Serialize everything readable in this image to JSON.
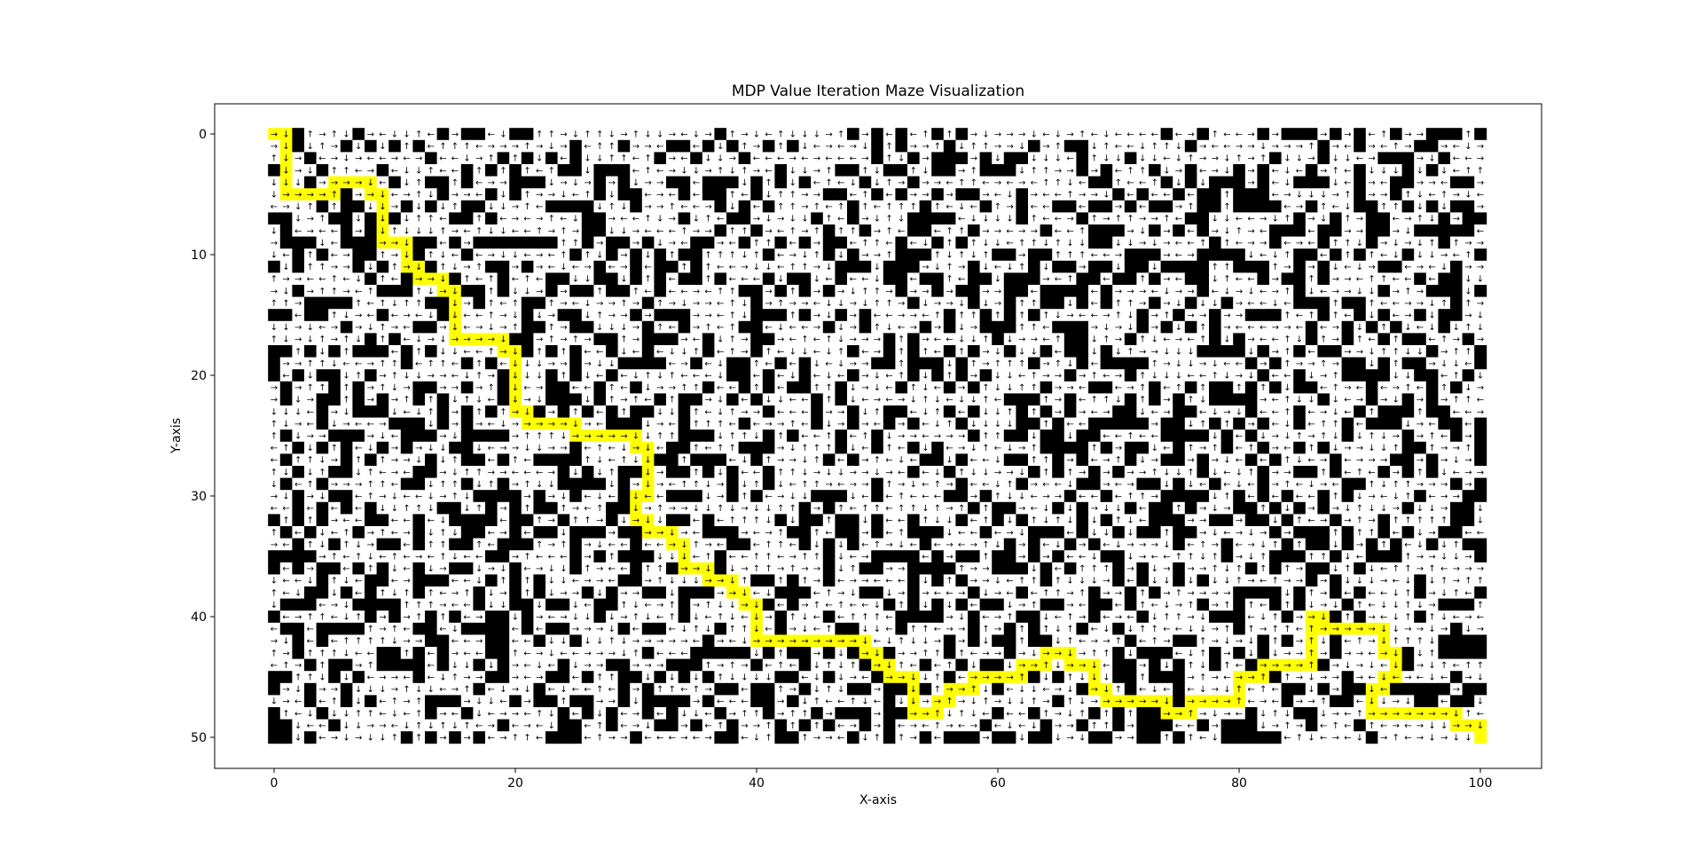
{
  "chart_data": {
    "type": "heatmap",
    "title": "MDP Value Iteration Maze Visualization",
    "xlabel": "X-axis",
    "ylabel": "Y-axis",
    "xlim": [
      -5,
      105
    ],
    "ylim": [
      52.5,
      -2.5
    ],
    "grid": false,
    "cols": 101,
    "rows": 51,
    "x_ticks": [
      0,
      20,
      40,
      60,
      80,
      100
    ],
    "y_ticks": [
      0,
      10,
      20,
      30,
      40,
      50
    ],
    "colors": {
      "wall": "#000000",
      "open": "#ffffff",
      "path": "#ffff00",
      "arrow": "#000000"
    },
    "maze_seed": 12345,
    "wall_fraction": 0.33,
    "arrow_symbols": [
      "→",
      "←",
      "↑",
      "↓"
    ],
    "path": [
      {
        "x": 0,
        "y": 0,
        "a": "→"
      },
      {
        "x": 1,
        "y": 0,
        "a": "↓"
      },
      {
        "x": 1,
        "y": 1,
        "a": "↓"
      },
      {
        "x": 1,
        "y": 2,
        "a": "↓"
      },
      {
        "x": 1,
        "y": 3,
        "a": "↓"
      },
      {
        "x": 1,
        "y": 4,
        "a": "↓"
      },
      {
        "x": 1,
        "y": 5,
        "a": "→"
      },
      {
        "x": 2,
        "y": 5,
        "a": "→"
      },
      {
        "x": 3,
        "y": 5,
        "a": "→"
      },
      {
        "x": 4,
        "y": 5,
        "a": "→"
      },
      {
        "x": 5,
        "y": 5,
        "a": "↑"
      },
      {
        "x": 5,
        "y": 4,
        "a": "→"
      },
      {
        "x": 6,
        "y": 4,
        "a": "→"
      },
      {
        "x": 7,
        "y": 4,
        "a": "→"
      },
      {
        "x": 8,
        "y": 4,
        "a": "↓"
      },
      {
        "x": 8,
        "y": 5,
        "a": "→"
      },
      {
        "x": 9,
        "y": 5,
        "a": "↓"
      },
      {
        "x": 9,
        "y": 6,
        "a": "↓"
      },
      {
        "x": 9,
        "y": 7,
        "a": "↓"
      },
      {
        "x": 9,
        "y": 8,
        "a": "↓"
      },
      {
        "x": 9,
        "y": 9,
        "a": "→"
      },
      {
        "x": 10,
        "y": 9,
        "a": "→"
      },
      {
        "x": 11,
        "y": 9,
        "a": "↓"
      },
      {
        "x": 11,
        "y": 10,
        "a": "↓"
      },
      {
        "x": 11,
        "y": 11,
        "a": "→"
      },
      {
        "x": 12,
        "y": 11,
        "a": "↓"
      },
      {
        "x": 12,
        "y": 12,
        "a": "→"
      },
      {
        "x": 13,
        "y": 12,
        "a": "→"
      },
      {
        "x": 14,
        "y": 12,
        "a": "↓"
      },
      {
        "x": 14,
        "y": 13,
        "a": "→"
      },
      {
        "x": 15,
        "y": 13,
        "a": "↓"
      },
      {
        "x": 15,
        "y": 14,
        "a": "↓"
      },
      {
        "x": 15,
        "y": 15,
        "a": "↓"
      },
      {
        "x": 15,
        "y": 16,
        "a": "↓"
      },
      {
        "x": 15,
        "y": 17,
        "a": "→"
      },
      {
        "x": 16,
        "y": 17,
        "a": "→"
      },
      {
        "x": 17,
        "y": 17,
        "a": "→"
      },
      {
        "x": 18,
        "y": 17,
        "a": "→"
      },
      {
        "x": 19,
        "y": 17,
        "a": "↓"
      },
      {
        "x": 19,
        "y": 18,
        "a": "→"
      },
      {
        "x": 20,
        "y": 18,
        "a": "↓"
      },
      {
        "x": 20,
        "y": 19,
        "a": "↓"
      },
      {
        "x": 20,
        "y": 20,
        "a": "↓"
      },
      {
        "x": 20,
        "y": 21,
        "a": "↓"
      },
      {
        "x": 20,
        "y": 22,
        "a": "↓"
      },
      {
        "x": 20,
        "y": 23,
        "a": "→"
      },
      {
        "x": 21,
        "y": 23,
        "a": "↓"
      },
      {
        "x": 21,
        "y": 24,
        "a": "→"
      },
      {
        "x": 22,
        "y": 24,
        "a": "→"
      },
      {
        "x": 23,
        "y": 24,
        "a": "→"
      },
      {
        "x": 24,
        "y": 24,
        "a": "→"
      },
      {
        "x": 25,
        "y": 24,
        "a": "↓"
      },
      {
        "x": 25,
        "y": 25,
        "a": "→"
      },
      {
        "x": 26,
        "y": 25,
        "a": "→"
      },
      {
        "x": 27,
        "y": 25,
        "a": "→"
      },
      {
        "x": 28,
        "y": 25,
        "a": "→"
      },
      {
        "x": 29,
        "y": 25,
        "a": "→"
      },
      {
        "x": 30,
        "y": 25,
        "a": "↓"
      },
      {
        "x": 30,
        "y": 26,
        "a": "→"
      },
      {
        "x": 31,
        "y": 26,
        "a": "↓"
      },
      {
        "x": 31,
        "y": 27,
        "a": "↓"
      },
      {
        "x": 31,
        "y": 28,
        "a": "↓"
      },
      {
        "x": 31,
        "y": 29,
        "a": "↓"
      },
      {
        "x": 31,
        "y": 30,
        "a": "←"
      },
      {
        "x": 30,
        "y": 30,
        "a": "↓"
      },
      {
        "x": 30,
        "y": 31,
        "a": "↓"
      },
      {
        "x": 30,
        "y": 32,
        "a": "→"
      },
      {
        "x": 31,
        "y": 32,
        "a": "↓"
      },
      {
        "x": 31,
        "y": 33,
        "a": "→"
      },
      {
        "x": 32,
        "y": 33,
        "a": "→"
      },
      {
        "x": 33,
        "y": 33,
        "a": "↓"
      },
      {
        "x": 33,
        "y": 34,
        "a": "→"
      },
      {
        "x": 34,
        "y": 34,
        "a": "↓"
      },
      {
        "x": 34,
        "y": 35,
        "a": "↓"
      },
      {
        "x": 34,
        "y": 36,
        "a": "→"
      },
      {
        "x": 35,
        "y": 36,
        "a": "→"
      },
      {
        "x": 36,
        "y": 36,
        "a": "↓"
      },
      {
        "x": 36,
        "y": 37,
        "a": "→"
      },
      {
        "x": 37,
        "y": 37,
        "a": "→"
      },
      {
        "x": 38,
        "y": 37,
        "a": "↓"
      },
      {
        "x": 38,
        "y": 38,
        "a": "→"
      },
      {
        "x": 39,
        "y": 38,
        "a": "↓"
      },
      {
        "x": 39,
        "y": 39,
        "a": "→"
      },
      {
        "x": 40,
        "y": 39,
        "a": "↓"
      },
      {
        "x": 40,
        "y": 40,
        "a": "↓"
      },
      {
        "x": 40,
        "y": 41,
        "a": "↓"
      },
      {
        "x": 40,
        "y": 42,
        "a": "→"
      },
      {
        "x": 41,
        "y": 42,
        "a": "→"
      },
      {
        "x": 42,
        "y": 42,
        "a": "→"
      },
      {
        "x": 43,
        "y": 42,
        "a": "→"
      },
      {
        "x": 44,
        "y": 42,
        "a": "→"
      },
      {
        "x": 45,
        "y": 42,
        "a": "→"
      },
      {
        "x": 46,
        "y": 42,
        "a": "→"
      },
      {
        "x": 47,
        "y": 42,
        "a": "→"
      },
      {
        "x": 48,
        "y": 42,
        "a": "→"
      },
      {
        "x": 49,
        "y": 42,
        "a": "↓"
      },
      {
        "x": 49,
        "y": 43,
        "a": "→"
      },
      {
        "x": 50,
        "y": 43,
        "a": "↓"
      },
      {
        "x": 50,
        "y": 44,
        "a": "→"
      },
      {
        "x": 51,
        "y": 44,
        "a": "↓"
      },
      {
        "x": 51,
        "y": 45,
        "a": "→"
      },
      {
        "x": 52,
        "y": 45,
        "a": "→"
      },
      {
        "x": 53,
        "y": 45,
        "a": "↓"
      },
      {
        "x": 53,
        "y": 46,
        "a": "↓"
      },
      {
        "x": 53,
        "y": 47,
        "a": "↓"
      },
      {
        "x": 53,
        "y": 48,
        "a": "→"
      },
      {
        "x": 54,
        "y": 48,
        "a": "→"
      },
      {
        "x": 55,
        "y": 48,
        "a": "↑"
      },
      {
        "x": 55,
        "y": 47,
        "a": "→"
      },
      {
        "x": 56,
        "y": 47,
        "a": "↑"
      },
      {
        "x": 56,
        "y": 46,
        "a": "→"
      },
      {
        "x": 57,
        "y": 46,
        "a": "→"
      },
      {
        "x": 58,
        "y": 46,
        "a": "↑"
      },
      {
        "x": 58,
        "y": 45,
        "a": "→"
      },
      {
        "x": 59,
        "y": 45,
        "a": "→"
      },
      {
        "x": 60,
        "y": 45,
        "a": "→"
      },
      {
        "x": 61,
        "y": 45,
        "a": "→"
      },
      {
        "x": 62,
        "y": 45,
        "a": "↑"
      },
      {
        "x": 62,
        "y": 44,
        "a": "→"
      },
      {
        "x": 63,
        "y": 44,
        "a": "→"
      },
      {
        "x": 64,
        "y": 44,
        "a": "↑"
      },
      {
        "x": 64,
        "y": 43,
        "a": "→"
      },
      {
        "x": 65,
        "y": 43,
        "a": "→"
      },
      {
        "x": 66,
        "y": 43,
        "a": "↓"
      },
      {
        "x": 66,
        "y": 44,
        "a": "→"
      },
      {
        "x": 67,
        "y": 44,
        "a": "→"
      },
      {
        "x": 68,
        "y": 44,
        "a": "↓"
      },
      {
        "x": 68,
        "y": 45,
        "a": "↓"
      },
      {
        "x": 68,
        "y": 46,
        "a": "→"
      },
      {
        "x": 69,
        "y": 46,
        "a": "↓"
      },
      {
        "x": 69,
        "y": 47,
        "a": "→"
      },
      {
        "x": 70,
        "y": 47,
        "a": "→"
      },
      {
        "x": 71,
        "y": 47,
        "a": "→"
      },
      {
        "x": 72,
        "y": 47,
        "a": "→"
      },
      {
        "x": 73,
        "y": 47,
        "a": "→"
      },
      {
        "x": 74,
        "y": 47,
        "a": "↓"
      },
      {
        "x": 74,
        "y": 48,
        "a": "→"
      },
      {
        "x": 75,
        "y": 48,
        "a": "→"
      },
      {
        "x": 76,
        "y": 48,
        "a": "↑"
      },
      {
        "x": 76,
        "y": 47,
        "a": "→"
      },
      {
        "x": 77,
        "y": 47,
        "a": "→"
      },
      {
        "x": 78,
        "y": 47,
        "a": "→"
      },
      {
        "x": 79,
        "y": 47,
        "a": "→"
      },
      {
        "x": 80,
        "y": 47,
        "a": "↑"
      },
      {
        "x": 80,
        "y": 46,
        "a": "↑"
      },
      {
        "x": 80,
        "y": 45,
        "a": "→"
      },
      {
        "x": 81,
        "y": 45,
        "a": "→"
      },
      {
        "x": 82,
        "y": 45,
        "a": "↑"
      },
      {
        "x": 82,
        "y": 44,
        "a": "→"
      },
      {
        "x": 83,
        "y": 44,
        "a": "→"
      },
      {
        "x": 84,
        "y": 44,
        "a": "→"
      },
      {
        "x": 85,
        "y": 44,
        "a": "→"
      },
      {
        "x": 86,
        "y": 44,
        "a": "↑"
      },
      {
        "x": 86,
        "y": 43,
        "a": "↑"
      },
      {
        "x": 86,
        "y": 42,
        "a": "↑"
      },
      {
        "x": 86,
        "y": 41,
        "a": "↑"
      },
      {
        "x": 86,
        "y": 40,
        "a": "→"
      },
      {
        "x": 87,
        "y": 40,
        "a": "↓"
      },
      {
        "x": 87,
        "y": 41,
        "a": "→"
      },
      {
        "x": 88,
        "y": 41,
        "a": "→"
      },
      {
        "x": 89,
        "y": 41,
        "a": "→"
      },
      {
        "x": 90,
        "y": 41,
        "a": "→"
      },
      {
        "x": 91,
        "y": 41,
        "a": "→"
      },
      {
        "x": 92,
        "y": 41,
        "a": "↓"
      },
      {
        "x": 92,
        "y": 42,
        "a": "↓"
      },
      {
        "x": 92,
        "y": 43,
        "a": "→"
      },
      {
        "x": 93,
        "y": 43,
        "a": "↓"
      },
      {
        "x": 93,
        "y": 44,
        "a": "↓"
      },
      {
        "x": 93,
        "y": 45,
        "a": "←"
      },
      {
        "x": 92,
        "y": 45,
        "a": "↓"
      },
      {
        "x": 92,
        "y": 46,
        "a": "←"
      },
      {
        "x": 91,
        "y": 46,
        "a": "↓"
      },
      {
        "x": 91,
        "y": 47,
        "a": "↓"
      },
      {
        "x": 91,
        "y": 48,
        "a": "→"
      },
      {
        "x": 92,
        "y": 48,
        "a": "→"
      },
      {
        "x": 93,
        "y": 48,
        "a": "→"
      },
      {
        "x": 94,
        "y": 48,
        "a": "→"
      },
      {
        "x": 95,
        "y": 48,
        "a": "→"
      },
      {
        "x": 96,
        "y": 48,
        "a": "→"
      },
      {
        "x": 97,
        "y": 48,
        "a": "→"
      },
      {
        "x": 98,
        "y": 48,
        "a": "↓"
      },
      {
        "x": 98,
        "y": 49,
        "a": "→"
      },
      {
        "x": 99,
        "y": 49,
        "a": "→"
      },
      {
        "x": 100,
        "y": 49,
        "a": "↓"
      },
      {
        "x": 100,
        "y": 50,
        "a": ""
      }
    ]
  }
}
